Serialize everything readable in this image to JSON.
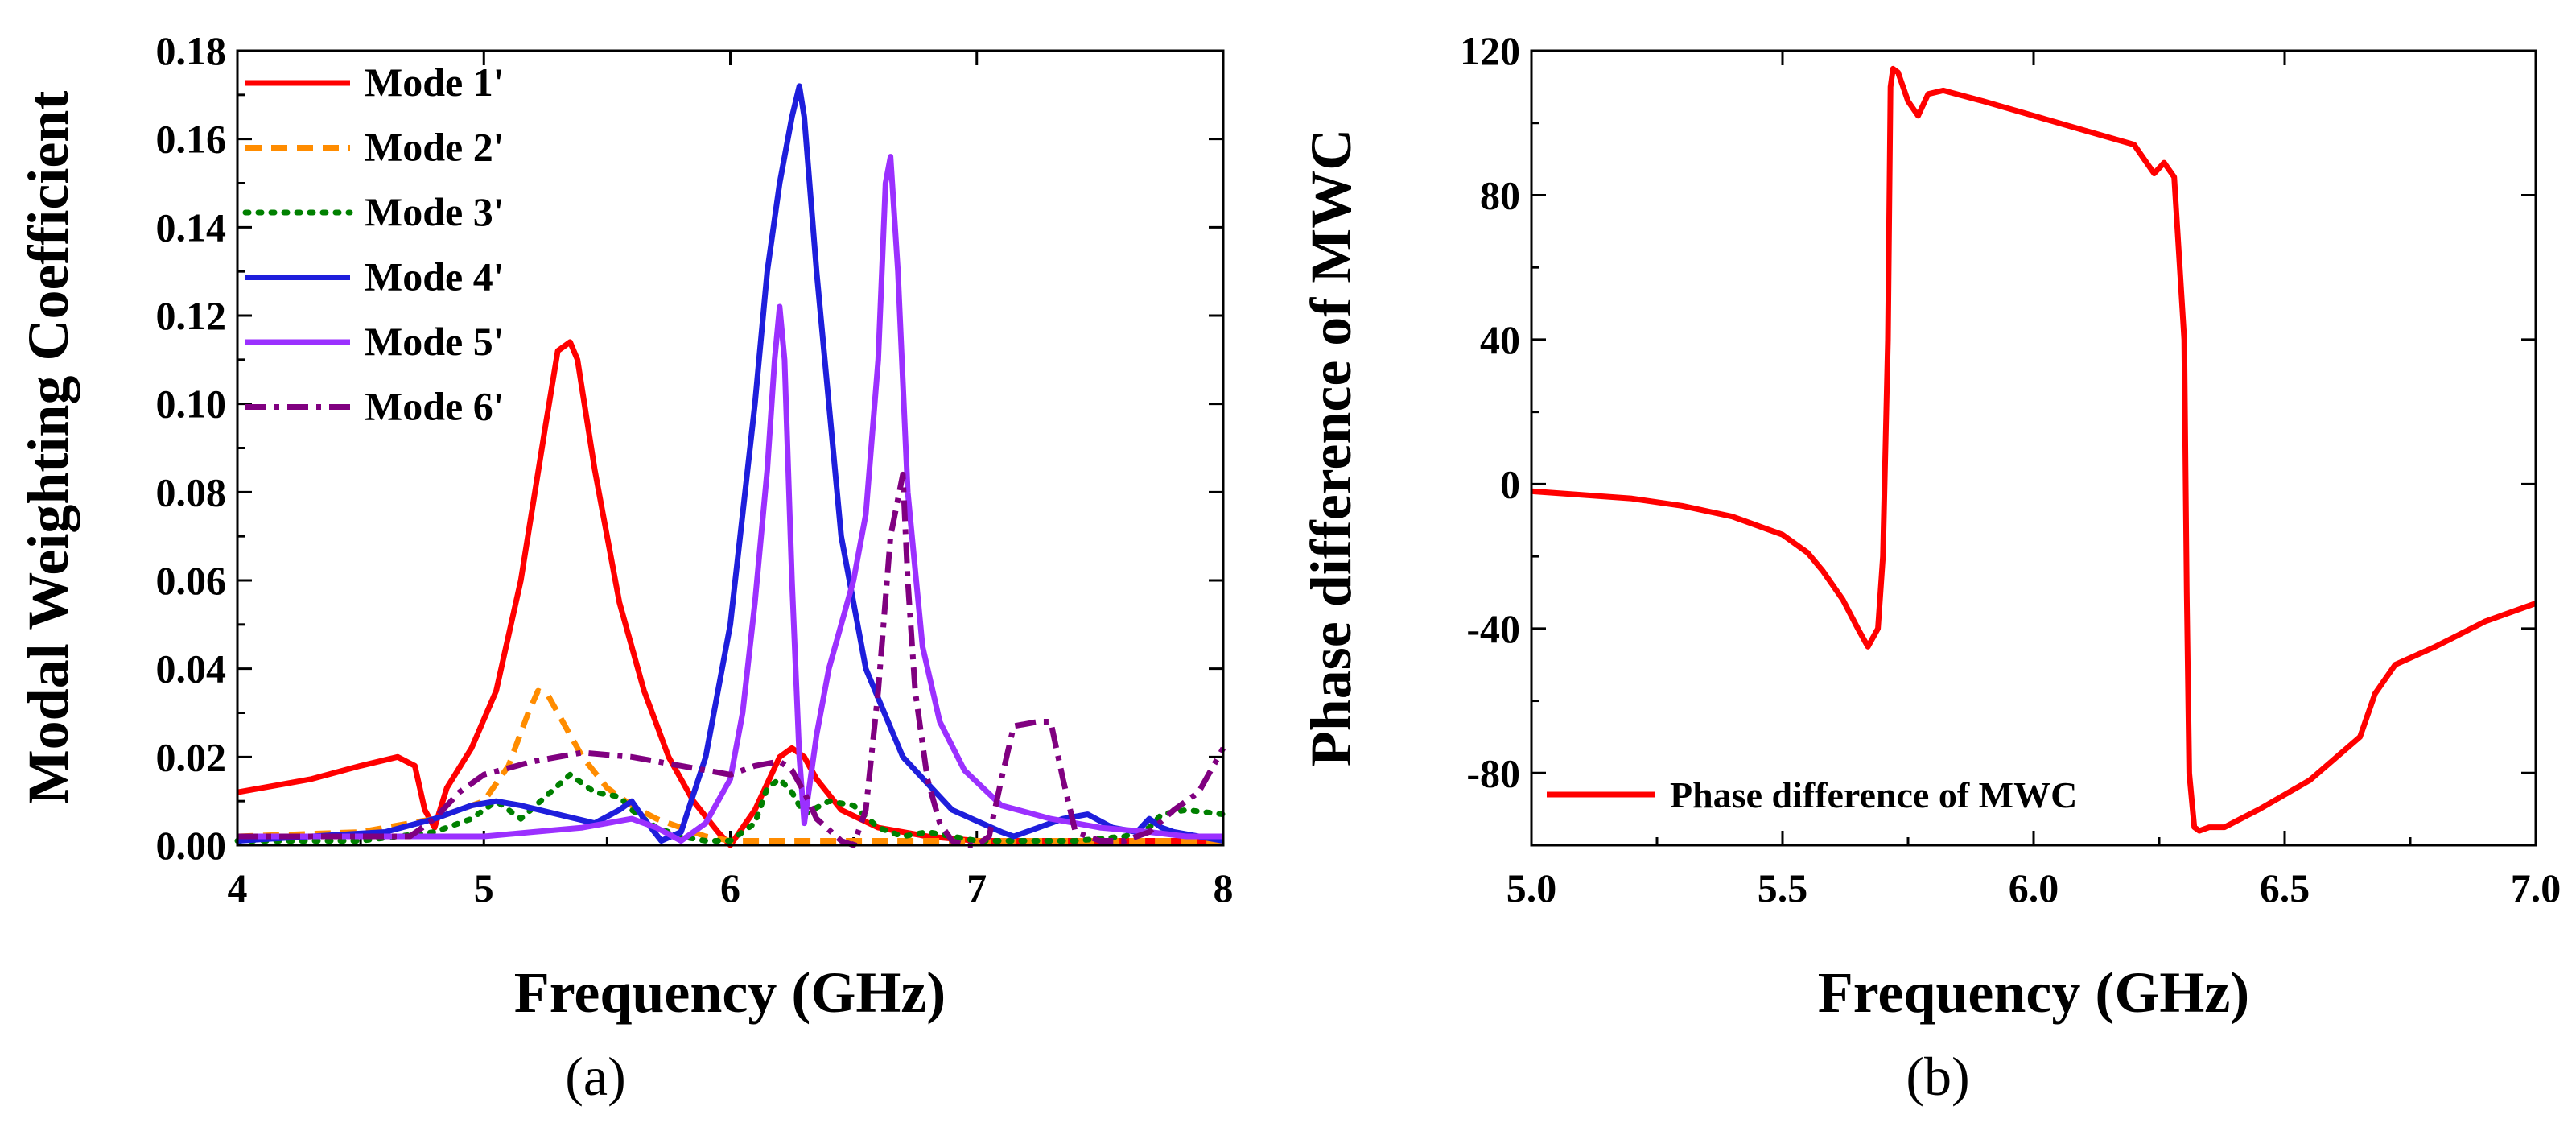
{
  "chart_data": [
    {
      "type": "line",
      "panel_label": "(a)",
      "xlabel": "Frequency (GHz)",
      "ylabel": "Modal Weighting Coefficient",
      "xlim": [
        4,
        8
      ],
      "ylim": [
        0,
        0.18
      ],
      "xticks": [
        "4",
        "5",
        "6",
        "7",
        "8"
      ],
      "yticks": [
        "0.00",
        "0.02",
        "0.04",
        "0.06",
        "0.08",
        "0.10",
        "0.12",
        "0.14",
        "0.16",
        "0.18"
      ],
      "legend_position": "top-left",
      "series": [
        {
          "name": "Mode 1'",
          "color": "#ff0000",
          "dash": "solid",
          "x": [
            4.0,
            4.3,
            4.5,
            4.65,
            4.72,
            4.76,
            4.8,
            4.85,
            4.95,
            5.05,
            5.15,
            5.25,
            5.3,
            5.35,
            5.38,
            5.45,
            5.55,
            5.65,
            5.75,
            5.85,
            5.95,
            6.0,
            6.1,
            6.2,
            6.25,
            6.3,
            6.35,
            6.45,
            6.6,
            6.8,
            7.0,
            7.3,
            7.6,
            8.0
          ],
          "y": [
            0.012,
            0.015,
            0.018,
            0.02,
            0.018,
            0.008,
            0.004,
            0.013,
            0.022,
            0.035,
            0.06,
            0.095,
            0.112,
            0.114,
            0.11,
            0.085,
            0.055,
            0.035,
            0.02,
            0.01,
            0.003,
            0.0,
            0.008,
            0.02,
            0.022,
            0.02,
            0.015,
            0.008,
            0.004,
            0.002,
            0.001,
            0.001,
            0.001,
            0.001
          ]
        },
        {
          "name": "Mode 2'",
          "color": "#ff8c00",
          "dash": "20,12",
          "x": [
            4.0,
            4.5,
            4.8,
            5.0,
            5.1,
            5.18,
            5.22,
            5.26,
            5.3,
            5.35,
            5.4,
            5.5,
            5.6,
            5.7,
            5.8,
            5.9,
            6.0,
            6.2,
            6.5,
            7.0,
            7.5,
            8.0
          ],
          "y": [
            0.002,
            0.003,
            0.006,
            0.01,
            0.018,
            0.03,
            0.035,
            0.034,
            0.03,
            0.025,
            0.02,
            0.013,
            0.009,
            0.006,
            0.004,
            0.002,
            0.001,
            0.001,
            0.001,
            0.001,
            0.001,
            0.001
          ]
        },
        {
          "name": "Mode 3'",
          "color": "#008000",
          "dash": "4,12",
          "x": [
            4.0,
            4.5,
            4.8,
            4.95,
            5.05,
            5.15,
            5.25,
            5.35,
            5.45,
            5.55,
            5.6,
            5.7,
            5.8,
            5.9,
            6.0,
            6.1,
            6.15,
            6.2,
            6.25,
            6.3,
            6.4,
            6.5,
            6.6,
            6.7,
            6.8,
            7.0,
            7.2,
            7.4,
            7.6,
            7.7,
            7.75,
            7.85,
            8.0
          ],
          "y": [
            0.001,
            0.001,
            0.003,
            0.006,
            0.01,
            0.006,
            0.011,
            0.016,
            0.012,
            0.011,
            0.008,
            0.004,
            0.002,
            0.001,
            0.001,
            0.005,
            0.013,
            0.015,
            0.012,
            0.007,
            0.01,
            0.009,
            0.004,
            0.002,
            0.003,
            0.001,
            0.001,
            0.001,
            0.002,
            0.004,
            0.007,
            0.008,
            0.007
          ]
        },
        {
          "name": "Mode 4'",
          "color": "#1e1edc",
          "dash": "solid",
          "x": [
            4.0,
            4.3,
            4.6,
            4.8,
            4.95,
            5.05,
            5.15,
            5.3,
            5.45,
            5.55,
            5.6,
            5.65,
            5.72,
            5.8,
            5.9,
            6.0,
            6.1,
            6.15,
            6.2,
            6.25,
            6.28,
            6.3,
            6.35,
            6.45,
            6.55,
            6.7,
            6.9,
            7.1,
            7.15,
            7.25,
            7.35,
            7.45,
            7.55,
            7.65,
            7.7,
            7.75,
            7.8,
            7.9,
            8.0
          ],
          "y": [
            0.001,
            0.002,
            0.003,
            0.006,
            0.009,
            0.01,
            0.009,
            0.007,
            0.005,
            0.008,
            0.01,
            0.006,
            0.001,
            0.003,
            0.02,
            0.05,
            0.1,
            0.13,
            0.15,
            0.165,
            0.172,
            0.165,
            0.13,
            0.07,
            0.04,
            0.02,
            0.008,
            0.003,
            0.002,
            0.004,
            0.006,
            0.007,
            0.004,
            0.003,
            0.006,
            0.004,
            0.003,
            0.002,
            0.001
          ]
        },
        {
          "name": "Mode 5'",
          "color": "#9b30ff",
          "dash": "solid",
          "x": [
            4.0,
            4.5,
            4.8,
            5.0,
            5.2,
            5.4,
            5.6,
            5.7,
            5.8,
            5.9,
            6.0,
            6.05,
            6.1,
            6.15,
            6.18,
            6.2,
            6.22,
            6.25,
            6.28,
            6.3,
            6.35,
            6.4,
            6.5,
            6.55,
            6.6,
            6.63,
            6.65,
            6.68,
            6.72,
            6.78,
            6.85,
            6.95,
            7.1,
            7.3,
            7.5,
            7.7,
            7.85,
            8.0
          ],
          "y": [
            0.002,
            0.002,
            0.002,
            0.002,
            0.003,
            0.004,
            0.006,
            0.004,
            0.001,
            0.005,
            0.015,
            0.03,
            0.055,
            0.085,
            0.11,
            0.122,
            0.11,
            0.06,
            0.02,
            0.005,
            0.025,
            0.04,
            0.06,
            0.075,
            0.11,
            0.15,
            0.156,
            0.13,
            0.08,
            0.045,
            0.028,
            0.017,
            0.009,
            0.006,
            0.004,
            0.003,
            0.002,
            0.002
          ]
        },
        {
          "name": "Mode 6'",
          "color": "#800080",
          "dash": "26,10,6,10",
          "x": [
            4.0,
            4.5,
            4.7,
            4.8,
            4.9,
            5.0,
            5.2,
            5.4,
            5.6,
            5.8,
            6.0,
            6.1,
            6.2,
            6.25,
            6.3,
            6.35,
            6.45,
            6.5,
            6.55,
            6.6,
            6.65,
            6.7,
            6.72,
            6.75,
            6.8,
            6.85,
            6.9,
            6.95,
            7.0,
            7.05,
            7.1,
            7.15,
            7.25,
            7.3,
            7.35,
            7.4,
            7.5,
            7.6,
            7.7,
            7.8,
            7.9,
            8.0
          ],
          "y": [
            0.002,
            0.002,
            0.002,
            0.006,
            0.012,
            0.016,
            0.019,
            0.021,
            0.02,
            0.018,
            0.016,
            0.018,
            0.019,
            0.017,
            0.012,
            0.006,
            0.001,
            0.0,
            0.008,
            0.035,
            0.07,
            0.084,
            0.06,
            0.035,
            0.015,
            0.005,
            0.001,
            0.0,
            0.0,
            0.002,
            0.015,
            0.027,
            0.028,
            0.028,
            0.015,
            0.003,
            0.001,
            0.001,
            0.003,
            0.008,
            0.012,
            0.022
          ]
        }
      ]
    },
    {
      "type": "line",
      "panel_label": "(b)",
      "xlabel": "Frequency (GHz)",
      "ylabel": "Phase difference of MWC",
      "xlim": [
        5.0,
        7.0
      ],
      "ylim": [
        -100,
        120
      ],
      "xticks": [
        "5.0",
        "5.5",
        "6.0",
        "6.5",
        "7.0"
      ],
      "yticks": [
        "-80",
        "-40",
        "0",
        "40",
        "80",
        "120"
      ],
      "legend_position": "bottom-left",
      "series": [
        {
          "name": "Phase difference of MWC",
          "color": "#ff0000",
          "dash": "solid",
          "x": [
            5.0,
            5.1,
            5.2,
            5.3,
            5.4,
            5.5,
            5.55,
            5.58,
            5.62,
            5.65,
            5.67,
            5.69,
            5.7,
            5.71,
            5.715,
            5.72,
            5.73,
            5.74,
            5.75,
            5.77,
            5.79,
            5.82,
            5.9,
            6.0,
            6.1,
            6.2,
            6.22,
            6.24,
            6.26,
            6.28,
            6.3,
            6.305,
            6.31,
            6.32,
            6.33,
            6.35,
            6.38,
            6.45,
            6.55,
            6.65,
            6.68,
            6.72,
            6.8,
            6.9,
            7.0
          ],
          "y": [
            -2,
            -3,
            -4,
            -6,
            -9,
            -14,
            -19,
            -24,
            -32,
            -40,
            -45,
            -40,
            -20,
            40,
            110,
            115,
            114,
            110,
            106,
            102,
            108,
            109,
            106,
            102,
            98,
            94,
            90,
            86,
            89,
            85,
            40,
            -30,
            -80,
            -95,
            -96,
            -95,
            -95,
            -90,
            -82,
            -70,
            -58,
            -50,
            -45,
            -38,
            -33
          ]
        }
      ]
    }
  ]
}
